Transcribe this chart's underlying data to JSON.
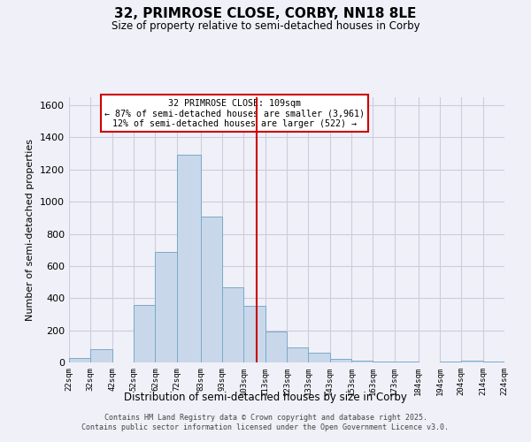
{
  "title": "32, PRIMROSE CLOSE, CORBY, NN18 8LE",
  "subtitle": "Size of property relative to semi-detached houses in Corby",
  "xlabel": "Distribution of semi-detached houses by size in Corby",
  "ylabel": "Number of semi-detached properties",
  "bar_edges": [
    22,
    32,
    42,
    52,
    62,
    72,
    83,
    93,
    103,
    113,
    123,
    133,
    143,
    153,
    163,
    173,
    184,
    194,
    204,
    214,
    224
  ],
  "bar_heights": [
    25,
    80,
    0,
    360,
    690,
    1290,
    910,
    470,
    350,
    195,
    95,
    60,
    20,
    10,
    5,
    5,
    0,
    5,
    10,
    5
  ],
  "bar_color": "#c8d8ea",
  "bar_edge_color": "#7aaac8",
  "vline_x": 109,
  "vline_color": "#cc0000",
  "ylim": [
    0,
    1650
  ],
  "yticks": [
    0,
    200,
    400,
    600,
    800,
    1000,
    1200,
    1400,
    1600
  ],
  "tick_labels": [
    "22sqm",
    "32sqm",
    "42sqm",
    "52sqm",
    "62sqm",
    "72sqm",
    "83sqm",
    "93sqm",
    "103sqm",
    "113sqm",
    "123sqm",
    "133sqm",
    "143sqm",
    "153sqm",
    "163sqm",
    "173sqm",
    "184sqm",
    "194sqm",
    "204sqm",
    "214sqm",
    "224sqm"
  ],
  "annotation_title": "32 PRIMROSE CLOSE: 109sqm",
  "annotation_line1": "← 87% of semi-detached houses are smaller (3,961)",
  "annotation_line2": "12% of semi-detached houses are larger (522) →",
  "annotation_box_color": "#ffffff",
  "annotation_box_edge": "#cc0000",
  "footer_line1": "Contains HM Land Registry data © Crown copyright and database right 2025.",
  "footer_line2": "Contains public sector information licensed under the Open Government Licence v3.0.",
  "background_color": "#f0f0f8"
}
